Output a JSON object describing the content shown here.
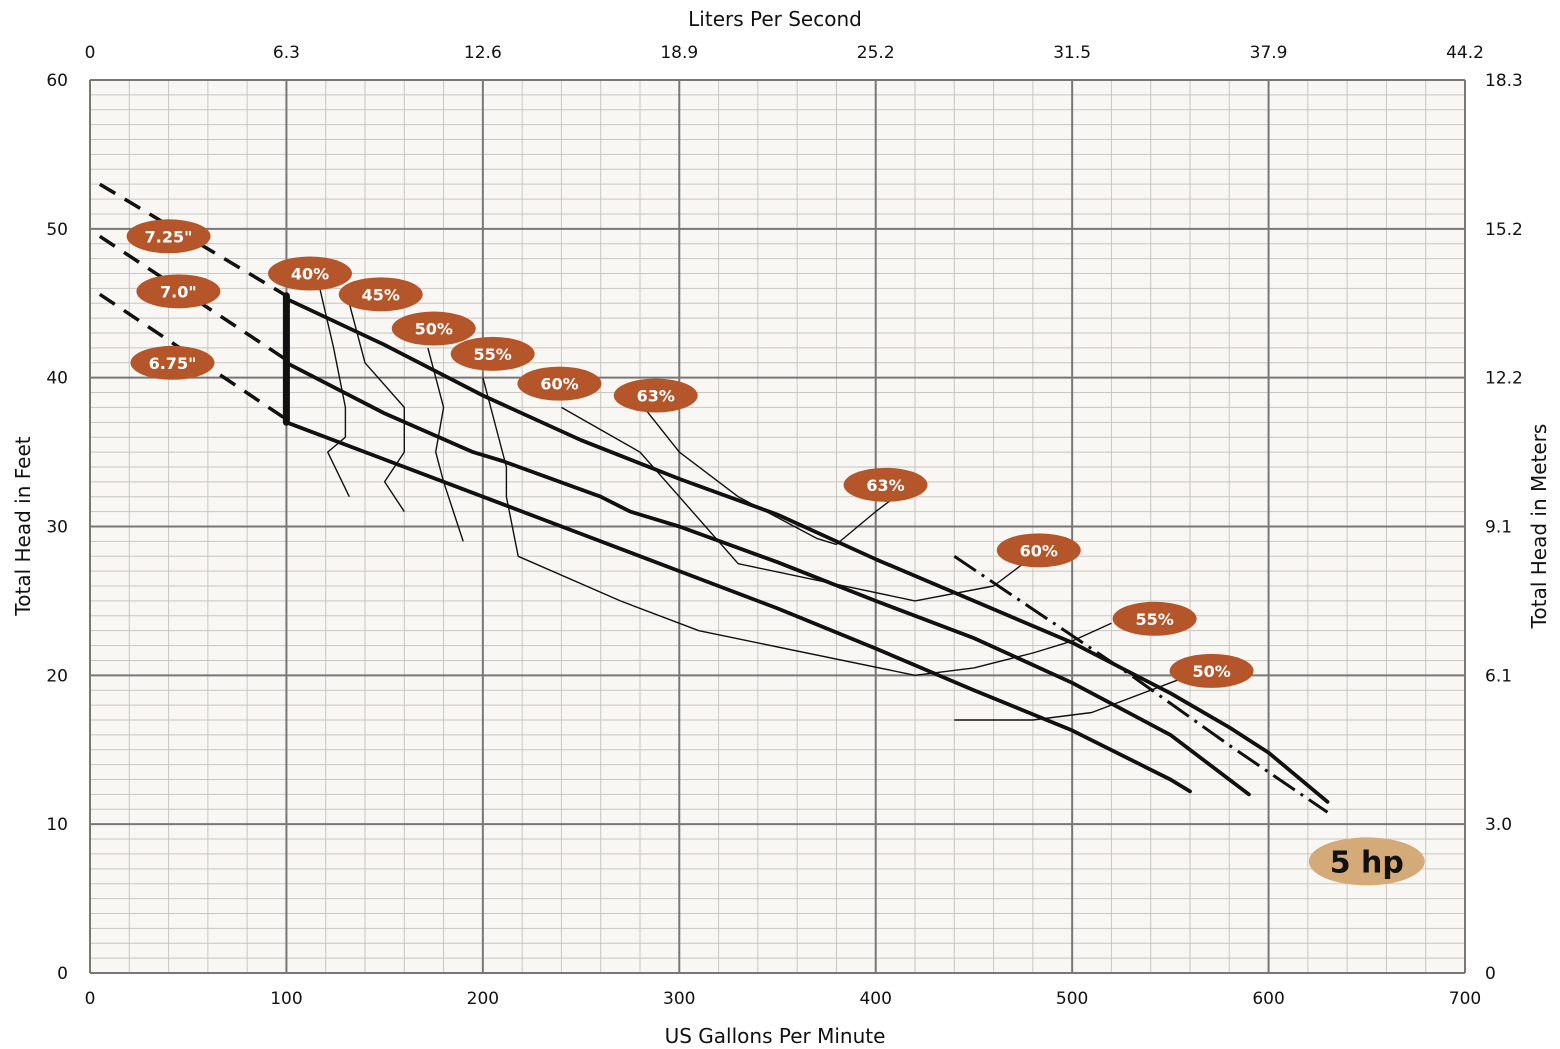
{
  "chart_data": {
    "type": "line",
    "title": "",
    "xlabel": "US Gallons Per Minute",
    "ylabel": "Total Head in Feet",
    "x2label": "Liters Per Second",
    "y2label": "Total Head in Meters",
    "xlim": [
      0,
      700
    ],
    "ylim": [
      0,
      60
    ],
    "grid": true,
    "colors": {
      "plot_background": "#f9f7f3",
      "minor_grid": "#c8c6c2",
      "major_grid": "#777777",
      "badge": "#b5562a",
      "hp_badge": "#d4aa78",
      "line": "#111111"
    },
    "x_ticks": [
      "0",
      "100",
      "200",
      "300",
      "400",
      "500",
      "600",
      "700"
    ],
    "y_ticks": [
      "0",
      "10",
      "20",
      "30",
      "40",
      "50",
      "60"
    ],
    "x2_ticks": [
      "0",
      "6.3",
      "12.6",
      "18.9",
      "25.2",
      "31.5",
      "37.9",
      "44.2"
    ],
    "y2_ticks": [
      "0",
      "3.0",
      "6.1",
      "9.1",
      "12.2",
      "15.2",
      "18.3"
    ],
    "impeller_curves": [
      {
        "name": "7.25\"",
        "dashed": [
          [
            5,
            53
          ],
          [
            100,
            45.5
          ]
        ],
        "solid": [
          [
            100,
            45.3
          ],
          [
            150,
            42.2
          ],
          [
            200,
            38.8
          ],
          [
            250,
            35.8
          ],
          [
            300,
            33.2
          ],
          [
            350,
            30.8
          ],
          [
            400,
            27.8
          ],
          [
            450,
            25.0
          ],
          [
            500,
            22.2
          ],
          [
            550,
            18.8
          ],
          [
            580,
            16.5
          ],
          [
            600,
            14.8
          ],
          [
            630,
            11.5
          ]
        ]
      },
      {
        "name": "7.0\"",
        "dashed": [
          [
            5,
            49.5
          ],
          [
            100,
            41.2
          ]
        ],
        "solid": [
          [
            100,
            41
          ],
          [
            150,
            37.6
          ],
          [
            195,
            35
          ],
          [
            200,
            34.8
          ],
          [
            210,
            34.4
          ],
          [
            260,
            32
          ],
          [
            275,
            31
          ],
          [
            300,
            30
          ],
          [
            350,
            27.6
          ],
          [
            400,
            25
          ],
          [
            450,
            22.5
          ],
          [
            500,
            19.5
          ],
          [
            550,
            16
          ],
          [
            590,
            12
          ]
        ]
      },
      {
        "name": "6.75\"",
        "dashed": [
          [
            5,
            45.6
          ],
          [
            100,
            37.2
          ]
        ],
        "solid": [
          [
            100,
            37
          ],
          [
            150,
            34.5
          ],
          [
            200,
            32
          ],
          [
            250,
            29.5
          ],
          [
            300,
            27
          ],
          [
            350,
            24.5
          ],
          [
            400,
            21.8
          ],
          [
            450,
            19.0
          ],
          [
            500,
            16.3
          ],
          [
            550,
            13
          ],
          [
            560,
            12.2
          ]
        ]
      }
    ],
    "shutoff_line": [
      [
        100,
        45.5
      ],
      [
        100,
        37
      ]
    ],
    "horsepower_limit": {
      "name": "5 hp",
      "points": [
        [
          440,
          28
        ],
        [
          530,
          20
        ],
        [
          580,
          15.3
        ],
        [
          600,
          13.5
        ],
        [
          630,
          10.8
        ]
      ]
    },
    "efficiency_curves": [
      {
        "label": "40%",
        "points": [
          [
            117,
            46
          ],
          [
            124,
            42
          ],
          [
            130,
            38
          ],
          [
            130,
            36
          ],
          [
            121,
            35
          ],
          [
            132,
            32
          ]
        ]
      },
      {
        "label": "45%",
        "points": [
          [
            132,
            45
          ],
          [
            140,
            41
          ],
          [
            160,
            38
          ],
          [
            160,
            35
          ],
          [
            150,
            33
          ],
          [
            160,
            31
          ]
        ]
      },
      {
        "label": "50%",
        "points": [
          [
            172,
            42
          ],
          [
            180,
            38
          ],
          [
            176,
            35
          ],
          [
            180,
            33
          ],
          [
            190,
            29
          ]
        ]
      },
      {
        "label": "55%",
        "points": [
          [
            200,
            40
          ],
          [
            212,
            34
          ],
          [
            212,
            32
          ],
          [
            218,
            28
          ],
          [
            270,
            25
          ],
          [
            310,
            23
          ],
          [
            420,
            20
          ],
          [
            450,
            20.5
          ],
          [
            480,
            21.5
          ],
          [
            500,
            22.3
          ],
          [
            520,
            23.5
          ]
        ]
      },
      {
        "label": "60%",
        "points": [
          [
            240,
            38
          ],
          [
            280,
            35
          ],
          [
            300,
            32
          ],
          [
            330,
            27.5
          ],
          [
            420,
            25
          ],
          [
            460,
            26
          ],
          [
            480,
            28
          ]
        ]
      },
      {
        "label": "63%",
        "points": [
          [
            282,
            38
          ],
          [
            300,
            35
          ],
          [
            330,
            32
          ],
          [
            370,
            29.2
          ],
          [
            380,
            28.8
          ],
          [
            400,
            31
          ],
          [
            410,
            32
          ]
        ]
      },
      {
        "label": "50%",
        "points": [
          [
            440,
            17
          ],
          [
            480,
            17
          ],
          [
            510,
            17.5
          ],
          [
            550,
            19.5
          ],
          [
            570,
            20.5
          ]
        ]
      }
    ],
    "annotations": [
      {
        "text": "7.25\"",
        "x": 40,
        "y": 49.5,
        "kind": "badge"
      },
      {
        "text": "7.0\"",
        "x": 45,
        "y": 45.8,
        "kind": "badge"
      },
      {
        "text": "6.75\"",
        "x": 42,
        "y": 41,
        "kind": "badge"
      },
      {
        "text": "40%",
        "x": 112,
        "y": 47,
        "kind": "badge"
      },
      {
        "text": "45%",
        "x": 148,
        "y": 45.6,
        "kind": "badge"
      },
      {
        "text": "50%",
        "x": 175,
        "y": 43.3,
        "kind": "badge"
      },
      {
        "text": "55%",
        "x": 205,
        "y": 41.6,
        "kind": "badge"
      },
      {
        "text": "60%",
        "x": 239,
        "y": 39.6,
        "kind": "badge"
      },
      {
        "text": "63%",
        "x": 288,
        "y": 38.8,
        "kind": "badge"
      },
      {
        "text": "63%",
        "x": 405,
        "y": 32.8,
        "kind": "badge"
      },
      {
        "text": "60%",
        "x": 483,
        "y": 28.4,
        "kind": "badge"
      },
      {
        "text": "55%",
        "x": 542,
        "y": 23.8,
        "kind": "badge"
      },
      {
        "text": "50%",
        "x": 571,
        "y": 20.3,
        "kind": "badge"
      },
      {
        "text": "5 hp",
        "x": 650,
        "y": 7.5,
        "kind": "hp"
      }
    ]
  }
}
